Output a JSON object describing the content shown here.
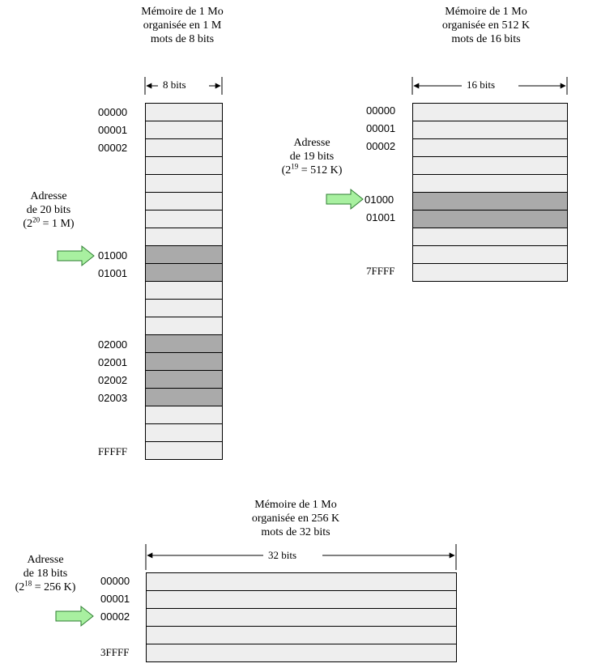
{
  "diagram1": {
    "title_lines": [
      "Mémoire de 1 Mo",
      "organisée en 1 M",
      "mots de 8 bits"
    ],
    "width_label": "8 bits",
    "address_label": {
      "line1": "Adresse",
      "line2": "de 20 bits",
      "exponent": "20",
      "suffix": " = 1 M)"
    },
    "addresses": [
      "00000",
      "00001",
      "00002",
      "01000",
      "01001",
      "02000",
      "02001",
      "02002",
      "02003",
      "FFFFF"
    ]
  },
  "diagram2": {
    "title_lines": [
      "Mémoire de 1 Mo",
      "organisée en 512 K",
      "mots de 16 bits"
    ],
    "width_label": "16 bits",
    "address_label": {
      "line1": "Adresse",
      "line2": "de 19 bits",
      "exponent": "19",
      "suffix": " = 512 K)"
    },
    "addresses": [
      "00000",
      "00001",
      "00002",
      "01000",
      "01001",
      "7FFFF"
    ]
  },
  "diagram3": {
    "title_lines": [
      "Mémoire de 1 Mo",
      "organisée en 256 K",
      "mots de 32 bits"
    ],
    "width_label": "32 bits",
    "address_label": {
      "line1": "Adresse",
      "line2": "de 18 bits",
      "exponent": "18",
      "suffix": " = 256 K)"
    },
    "addresses": [
      "00000",
      "00001",
      "00002",
      "3FFFF"
    ]
  },
  "colors": {
    "cell": "#eeeeee",
    "highlight": "#aaaaaa",
    "arrow_fill": "#a8f0a0",
    "arrow_stroke": "#2e7d32"
  }
}
